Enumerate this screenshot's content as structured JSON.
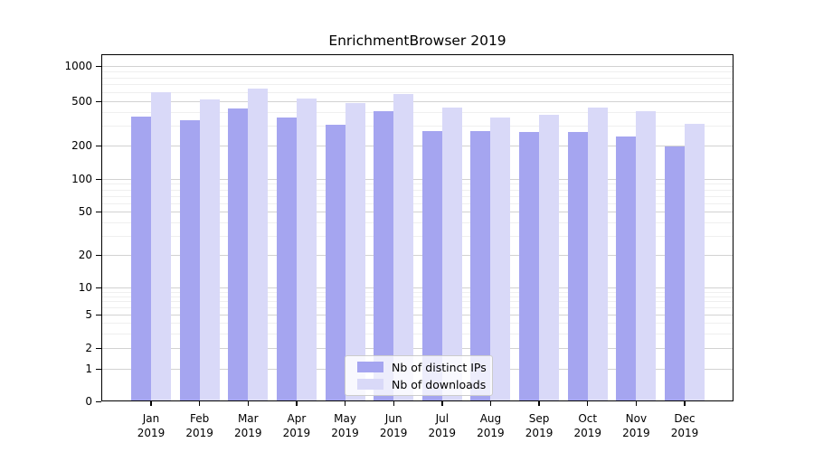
{
  "figure": {
    "title": "EnrichmentBrowser 2019"
  },
  "chart_data": {
    "type": "bar",
    "title": "EnrichmentBrowser 2019",
    "categories": [
      "Jan 2019",
      "Feb 2019",
      "Mar 2019",
      "Apr 2019",
      "May 2019",
      "Jun 2019",
      "Jul 2019",
      "Aug 2019",
      "Sep 2019",
      "Oct 2019",
      "Nov 2019",
      "Dec 2019"
    ],
    "series": [
      {
        "name": "Nb of distinct IPs",
        "color": "#a5a5f0",
        "values": [
          365,
          340,
          430,
          360,
          310,
          405,
          272,
          268,
          265,
          265,
          240,
          195
        ]
      },
      {
        "name": "Nb of downloads",
        "color": "#d9d9f8",
        "values": [
          600,
          515,
          640,
          530,
          480,
          580,
          435,
          360,
          380,
          440,
          405,
          315
        ]
      }
    ],
    "xlabel": "",
    "ylabel": "",
    "yscale": "symlog",
    "ylim": [
      0,
      1000
    ],
    "y_ticks": [
      0,
      1,
      2,
      5,
      10,
      20,
      50,
      100,
      200,
      500,
      1000
    ],
    "grid": true,
    "legend_position": "lower-center"
  }
}
